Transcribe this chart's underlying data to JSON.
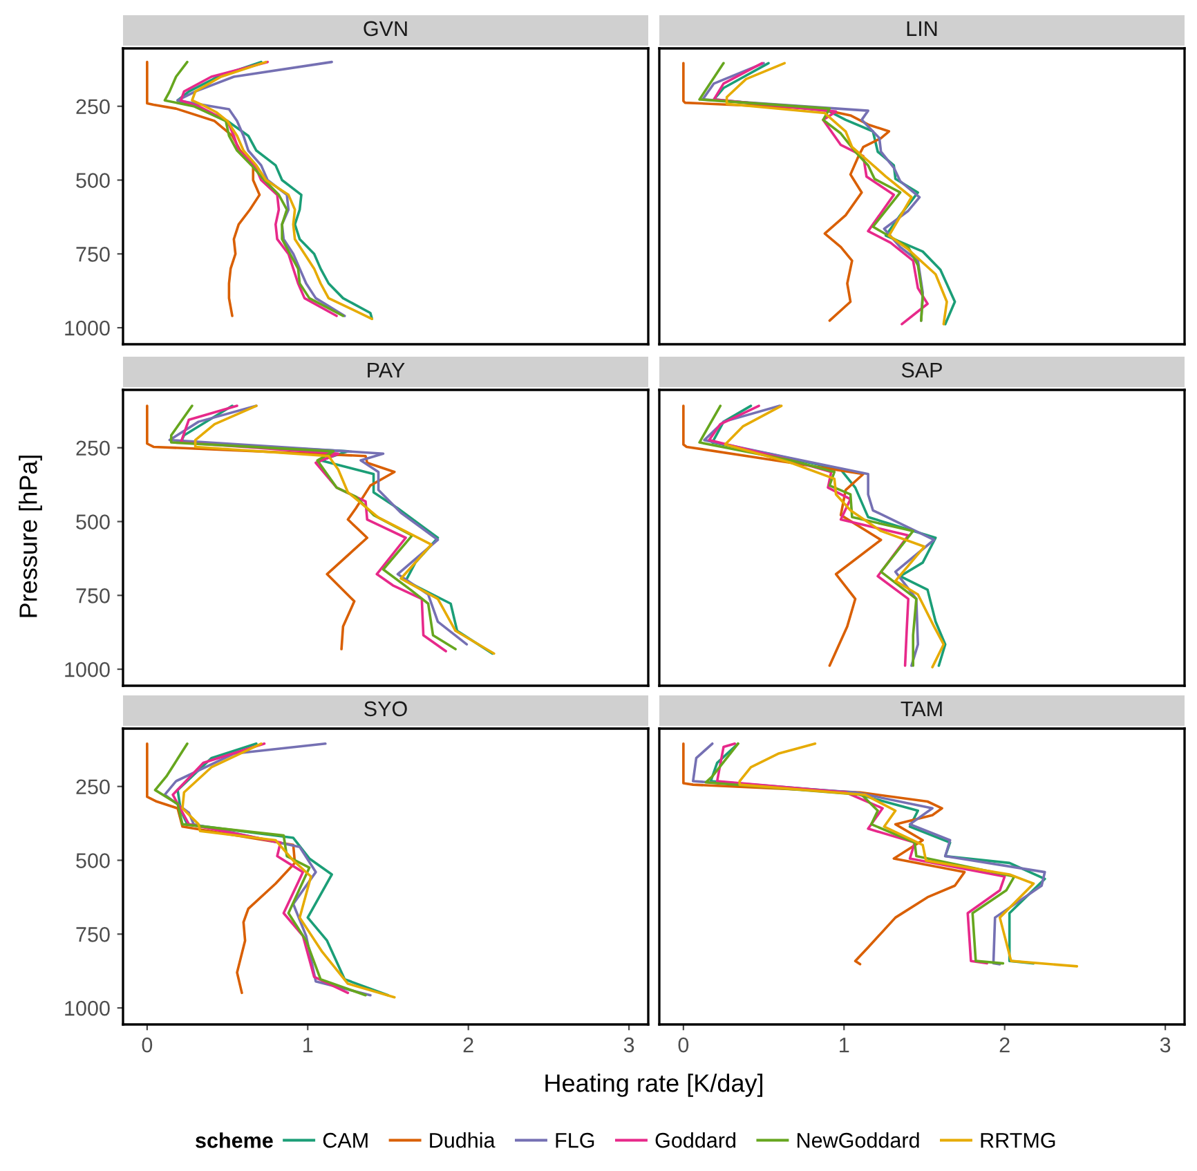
{
  "chart_data": [
    {
      "type": "line",
      "title": "GVN",
      "xlim": [
        -0.15,
        3.12
      ],
      "ylim": [
        1056,
        54
      ],
      "xticks": [
        0,
        1,
        2,
        3
      ],
      "yticks": [
        250,
        500,
        750,
        1000
      ],
      "tick_labels": "y",
      "grid": false,
      "legend": "bottom",
      "legend_title": "scheme",
      "line_style": "solid",
      "marker": "none",
      "series": [
        {
          "name": "CAM",
          "color": "#1b9e77",
          "x": [
            0.71,
            0.44,
            0.26,
            0.19,
            0.3,
            0.5,
            0.63,
            0.68,
            0.8,
            0.84,
            0.96,
            0.95,
            0.92,
            0.95,
            1.04,
            1.08,
            1.13,
            1.22,
            1.39,
            1.4
          ],
          "values": [
            100,
            150,
            200,
            230,
            250,
            300,
            350,
            400,
            450,
            500,
            550,
            600,
            650,
            700,
            750,
            800,
            850,
            900,
            950,
            970
          ]
        },
        {
          "name": "Dudhia",
          "color": "#d95f02",
          "x": [
            0,
            0,
            0,
            0.04,
            0.18,
            0.42,
            0.53,
            0.58,
            0.66,
            0.66,
            0.7,
            0.64,
            0.57,
            0.54,
            0.55,
            0.52,
            0.51,
            0.51,
            0.53
          ],
          "values": [
            100,
            200,
            240,
            245,
            258,
            300,
            350,
            400,
            450,
            500,
            550,
            600,
            650,
            700,
            750,
            800,
            850,
            900,
            960
          ]
        },
        {
          "name": "FLG",
          "color": "#7570b3",
          "x": [
            1.15,
            0.54,
            0.3,
            0.19,
            0.4,
            0.51,
            0.56,
            0.6,
            0.63,
            0.71,
            0.75,
            0.87,
            0.88,
            0.84,
            0.85,
            0.91,
            0.95,
            0.99,
            1.05,
            1.23
          ],
          "values": [
            100,
            150,
            200,
            230,
            250,
            260,
            300,
            350,
            400,
            450,
            500,
            550,
            600,
            650,
            700,
            750,
            800,
            850,
            900,
            960
          ]
        },
        {
          "name": "Goddard",
          "color": "#e7298a",
          "x": [
            0.75,
            0.4,
            0.23,
            0.21,
            0.32,
            0.5,
            0.54,
            0.57,
            0.67,
            0.71,
            0.81,
            0.82,
            0.8,
            0.81,
            0.88,
            0.91,
            0.94,
            0.98,
            1.18
          ],
          "values": [
            100,
            150,
            200,
            230,
            250,
            300,
            350,
            400,
            450,
            500,
            550,
            600,
            650,
            700,
            750,
            800,
            850,
            900,
            960
          ]
        },
        {
          "name": "NewGoddard",
          "color": "#66a61e",
          "x": [
            0.25,
            0.18,
            0.14,
            0.11,
            0.29,
            0.49,
            0.51,
            0.56,
            0.65,
            0.73,
            0.82,
            0.87,
            0.84,
            0.84,
            0.89,
            0.94,
            0.95,
            1.01,
            1.22
          ],
          "values": [
            100,
            150,
            200,
            230,
            250,
            300,
            350,
            400,
            450,
            500,
            550,
            600,
            650,
            700,
            750,
            800,
            850,
            900,
            960
          ]
        },
        {
          "name": "RRTMG",
          "color": "#e6ab02",
          "x": [
            0.74,
            0.46,
            0.3,
            0.28,
            0.36,
            0.43,
            0.5,
            0.56,
            0.6,
            0.68,
            0.74,
            0.88,
            0.92,
            0.91,
            0.92,
            0.98,
            1.04,
            1.08,
            1.13,
            1.4
          ],
          "values": [
            100,
            150,
            200,
            230,
            250,
            270,
            300,
            350,
            400,
            450,
            500,
            550,
            600,
            650,
            700,
            750,
            800,
            850,
            900,
            970
          ]
        }
      ]
    },
    {
      "type": "line",
      "title": "LIN",
      "xlim": [
        -0.15,
        3.12
      ],
      "ylim": [
        1056,
        54
      ],
      "xticks": [
        0,
        1,
        2,
        3
      ],
      "yticks": [
        250,
        500,
        750,
        1000
      ],
      "tick_labels": false,
      "grid": false,
      "line_style": "solid",
      "marker": "none",
      "series": [
        {
          "color": "#1b9e77",
          "x": [
            0.53,
            0.25,
            0.19,
            0.9,
            1.01,
            1.18,
            1.21,
            1.31,
            1.32,
            1.46,
            1.35,
            1.26,
            1.49,
            1.6,
            1.69,
            1.63
          ],
          "values": [
            104,
            188,
            227,
            265,
            296,
            335,
            404,
            450,
            496,
            542,
            619,
            688,
            742,
            804,
            912,
            988
          ]
        },
        {
          "color": "#d95f02",
          "x": [
            0,
            0,
            0.01,
            0.84,
            1.04,
            1.15,
            1.28,
            1.23,
            1.12,
            1.09,
            1.04,
            1.11,
            1.01,
            0.88,
            0.98,
            1.05,
            1.02,
            1.04,
            0.91
          ],
          "values": [
            104,
            232,
            238,
            258,
            281,
            312,
            335,
            358,
            388,
            419,
            481,
            542,
            619,
            681,
            727,
            773,
            850,
            912,
            976
          ]
        },
        {
          "color": "#7570b3",
          "x": [
            0.5,
            0.19,
            0.12,
            1.15,
            1.11,
            1.22,
            1.23,
            1.31,
            1.35,
            1.47,
            1.4,
            1.25,
            1.35,
            1.46,
            1.49,
            1.48
          ],
          "values": [
            104,
            173,
            227,
            265,
            296,
            358,
            404,
            458,
            504,
            558,
            604,
            665,
            727,
            773,
            881,
            976
          ]
        },
        {
          "color": "#e7298a",
          "x": [
            0.49,
            0.25,
            0.19,
            0.95,
            0.87,
            0.98,
            1.12,
            1.14,
            1.31,
            1.15,
            1.29,
            1.43,
            1.46,
            1.52,
            1.36
          ],
          "values": [
            104,
            173,
            227,
            268,
            296,
            381,
            419,
            488,
            550,
            673,
            712,
            773,
            866,
            919,
            988
          ]
        },
        {
          "color": "#66a61e",
          "x": [
            0.25,
            0.1,
            0.91,
            0.87,
            0.98,
            1.07,
            1.15,
            1.19,
            1.35,
            1.18,
            1.4,
            1.46,
            1.49,
            1.48
          ],
          "values": [
            104,
            227,
            258,
            296,
            342,
            404,
            450,
            496,
            542,
            658,
            727,
            789,
            896,
            976
          ]
        },
        {
          "color": "#e6ab02",
          "x": [
            0.63,
            0.39,
            0.27,
            0.27,
            0.88,
            1.01,
            1.05,
            1.15,
            1.26,
            1.42,
            1.28,
            1.4,
            1.57,
            1.64,
            1.62
          ],
          "values": [
            104,
            158,
            219,
            242,
            273,
            335,
            388,
            435,
            488,
            558,
            688,
            735,
            819,
            912,
            988
          ]
        }
      ]
    },
    {
      "type": "line",
      "title": "PAY",
      "ylabel": "Pressure [hPa]",
      "xlim": [
        -0.15,
        3.12
      ],
      "ylim": [
        1056,
        54
      ],
      "xticks": [
        0,
        1,
        2,
        3
      ],
      "yticks": [
        250,
        500,
        750,
        1000
      ],
      "tick_labels": "y",
      "grid": false,
      "line_style": "solid",
      "marker": "none",
      "series": [
        {
          "color": "#1b9e77",
          "x": [
            0.53,
            0.23,
            0.21,
            1.25,
            1.08,
            1.41,
            1.41,
            1.56,
            1.81,
            1.67,
            1.61,
            1.89,
            1.93,
            2.15
          ],
          "values": [
            108,
            208,
            232,
            262,
            293,
            339,
            401,
            455,
            555,
            639,
            701,
            778,
            870,
            947
          ]
        },
        {
          "color": "#d95f02",
          "x": [
            0,
            0,
            0.04,
            1.36,
            1.37,
            1.54,
            1.39,
            1.3,
            1.25,
            1.37,
            1.12,
            1.29,
            1.22,
            1.21
          ],
          "values": [
            108,
            236,
            247,
            278,
            301,
            332,
            378,
            455,
            493,
            555,
            678,
            770,
            855,
            932
          ]
        },
        {
          "color": "#7570b3",
          "x": [
            0.68,
            0.32,
            0.14,
            1.47,
            1.33,
            1.44,
            1.44,
            1.58,
            1.81,
            1.56,
            1.75,
            1.81,
            1.99
          ],
          "values": [
            108,
            162,
            224,
            270,
            293,
            332,
            393,
            470,
            562,
            678,
            747,
            839,
            916
          ]
        },
        {
          "color": "#e7298a",
          "x": [
            0.56,
            0.26,
            0.21,
            1.19,
            1.05,
            1.18,
            1.36,
            1.37,
            1.61,
            1.43,
            1.53,
            1.71,
            1.72,
            1.86
          ],
          "values": [
            108,
            155,
            232,
            270,
            301,
            385,
            432,
            493,
            555,
            678,
            716,
            762,
            885,
            939
          ]
        },
        {
          "color": "#66a61e",
          "x": [
            0.28,
            0.15,
            0.15,
            1.16,
            1.06,
            1.18,
            1.3,
            1.41,
            1.65,
            1.47,
            1.64,
            1.75,
            1.78,
            1.92
          ],
          "values": [
            108,
            208,
            232,
            262,
            293,
            385,
            416,
            478,
            547,
            662,
            731,
            778,
            885,
            932
          ]
        },
        {
          "color": "#e6ab02",
          "x": [
            0.68,
            0.42,
            0.3,
            0.3,
            1.13,
            1.19,
            1.25,
            1.44,
            1.77,
            1.58,
            1.81,
            1.92,
            2.16
          ],
          "values": [
            108,
            170,
            224,
            247,
            278,
            324,
            401,
            486,
            578,
            693,
            762,
            870,
            947
          ]
        }
      ]
    },
    {
      "type": "line",
      "title": "SAP",
      "xlim": [
        -0.15,
        3.12
      ],
      "ylim": [
        1056,
        54
      ],
      "xticks": [
        0,
        1,
        2,
        3
      ],
      "yticks": [
        250,
        500,
        750,
        1000
      ],
      "tick_labels": false,
      "grid": false,
      "line_style": "solid",
      "marker": "none",
      "series": [
        {
          "color": "#1b9e77",
          "x": [
            0.42,
            0.25,
            0.18,
            0.53,
            0.98,
            1.07,
            1.15,
            1.57,
            1.49,
            1.35,
            1.52,
            1.57,
            1.63,
            1.59
          ],
          "values": [
            108,
            162,
            232,
            270,
            324,
            385,
            485,
            555,
            639,
            685,
            731,
            839,
            916,
            988
          ]
        },
        {
          "color": "#d95f02",
          "x": [
            0,
            0,
            0.02,
            0.67,
            1.12,
            1.01,
            0.98,
            1.23,
            0.95,
            1.07,
            1.02,
            0.91
          ],
          "values": [
            108,
            239,
            247,
            301,
            339,
            393,
            478,
            562,
            678,
            762,
            855,
            988
          ]
        },
        {
          "color": "#7570b3",
          "x": [
            0.6,
            0.25,
            0.13,
            0.67,
            1.15,
            1.15,
            1.18,
            1.56,
            1.32,
            1.45,
            1.46,
            1.42
          ],
          "values": [
            108,
            162,
            224,
            285,
            339,
            408,
            462,
            562,
            670,
            762,
            916,
            988
          ]
        },
        {
          "color": "#e7298a",
          "x": [
            0.47,
            0.23,
            0.16,
            0.67,
            0.92,
            0.9,
            1.04,
            0.98,
            1.4,
            1.21,
            1.4,
            1.39,
            1.38
          ],
          "values": [
            108,
            170,
            224,
            293,
            332,
            385,
            424,
            493,
            547,
            685,
            762,
            870,
            988
          ]
        },
        {
          "color": "#66a61e",
          "x": [
            0.23,
            0.1,
            0.67,
            0.94,
            0.91,
            1.04,
            1.05,
            1.43,
            1.23,
            1.45,
            1.43,
            1.43
          ],
          "values": [
            108,
            232,
            293,
            332,
            378,
            408,
            485,
            532,
            670,
            762,
            885,
            988
          ]
        },
        {
          "color": "#e6ab02",
          "x": [
            0.61,
            0.37,
            0.26,
            0.67,
            0.94,
            0.95,
            1.04,
            1.23,
            1.5,
            1.32,
            1.46,
            1.56,
            1.62,
            1.55
          ],
          "values": [
            108,
            178,
            239,
            301,
            355,
            408,
            462,
            532,
            585,
            701,
            747,
            855,
            916,
            993
          ]
        }
      ]
    },
    {
      "type": "line",
      "title": "SYO",
      "xlabel": "Heating rate [K/day]",
      "xlim": [
        -0.15,
        3.12
      ],
      "ylim": [
        1056,
        54
      ],
      "xticks": [
        0,
        1,
        2,
        3
      ],
      "yticks": [
        250,
        500,
        750,
        1000
      ],
      "grid": false,
      "line_style": "solid",
      "marker": "none",
      "series": [
        {
          "color": "#1b9e77",
          "x": [
            0.68,
            0.4,
            0.19,
            0.21,
            0.25,
            0.91,
            1.01,
            1.15,
            1.0,
            1.12,
            1.23,
            1.5
          ],
          "values": [
            105,
            154,
            262,
            332,
            378,
            424,
            494,
            548,
            694,
            772,
            903,
            957
          ]
        },
        {
          "color": "#d95f02",
          "x": [
            0,
            0,
            0.06,
            0.19,
            0.22,
            0.91,
            0.92,
            0.8,
            0.63,
            0.6,
            0.61,
            0.56,
            0.59
          ],
          "values": [
            105,
            285,
            301,
            324,
            386,
            448,
            509,
            579,
            664,
            710,
            772,
            880,
            949
          ]
        },
        {
          "color": "#7570b3",
          "x": [
            1.11,
            0.54,
            0.18,
            0.11,
            0.26,
            0.29,
            0.95,
            1.05,
            0.91,
            0.99,
            1.05,
            1.39
          ],
          "values": [
            105,
            139,
            232,
            278,
            339,
            378,
            455,
            540,
            648,
            756,
            910,
            957
          ]
        },
        {
          "color": "#e7298a",
          "x": [
            0.73,
            0.35,
            0.16,
            0.26,
            0.83,
            0.81,
            0.97,
            0.85,
            0.97,
            1.04,
            1.25
          ],
          "values": [
            105,
            170,
            278,
            378,
            440,
            486,
            540,
            679,
            756,
            895,
            949
          ]
        },
        {
          "color": "#66a61e",
          "x": [
            0.25,
            0.12,
            0.05,
            0.19,
            0.22,
            0.85,
            0.87,
            1.01,
            0.88,
            0.99,
            1.08,
            1.36
          ],
          "values": [
            105,
            216,
            262,
            309,
            378,
            416,
            486,
            525,
            679,
            772,
            903,
            957
          ]
        },
        {
          "color": "#e6ab02",
          "x": [
            0.71,
            0.4,
            0.23,
            0.22,
            0.32,
            0.33,
            0.8,
            0.91,
            1.02,
            0.95,
            1.09,
            1.25,
            1.54
          ],
          "values": [
            105,
            185,
            270,
            324,
            378,
            401,
            432,
            501,
            555,
            694,
            810,
            918,
            964
          ]
        }
      ]
    },
    {
      "type": "line",
      "title": "TAM",
      "xlim": [
        -0.15,
        3.12
      ],
      "ylim": [
        1056,
        54
      ],
      "xticks": [
        0,
        1,
        2,
        3
      ],
      "yticks": [
        250,
        500,
        750,
        1000
      ],
      "tick_labels": "x",
      "grid": false,
      "line_style": "solid",
      "marker": "none",
      "series": [
        {
          "color": "#1b9e77",
          "x": [
            0.34,
            0.21,
            0.17,
            1.04,
            1.46,
            1.41,
            1.66,
            1.63,
            2.03,
            2.25,
            2.03,
            2.03,
            2.18
          ],
          "values": [
            105,
            170,
            232,
            270,
            332,
            386,
            440,
            486,
            509,
            563,
            679,
            841,
            849
          ]
        },
        {
          "color": "#d95f02",
          "x": [
            0,
            0,
            0.06,
            1.1,
            1.52,
            1.61,
            1.55,
            1.32,
            1.49,
            1.31,
            1.75,
            1.69,
            1.52,
            1.32,
            1.15,
            1.07,
            1.1
          ],
          "values": [
            105,
            239,
            244,
            270,
            301,
            324,
            347,
            378,
            432,
            494,
            540,
            586,
            625,
            694,
            795,
            841,
            852
          ]
        },
        {
          "color": "#7570b3",
          "x": [
            0.18,
            0.08,
            0.06,
            1.07,
            1.55,
            1.41,
            1.66,
            1.63,
            2.25,
            2.23,
            1.94,
            1.93,
            1.97
          ],
          "values": [
            105,
            154,
            232,
            270,
            324,
            378,
            432,
            486,
            540,
            586,
            694,
            849,
            852
          ]
        },
        {
          "color": "#e7298a",
          "x": [
            0.32,
            0.25,
            0.21,
            1.01,
            1.24,
            1.15,
            1.44,
            1.41,
            2.0,
            1.97,
            1.77,
            1.79,
            1.89
          ],
          "values": [
            105,
            116,
            232,
            270,
            324,
            393,
            440,
            494,
            555,
            602,
            679,
            841,
            849
          ]
        },
        {
          "color": "#66a61e",
          "x": [
            0.34,
            0.18,
            0.14,
            1.11,
            1.21,
            1.17,
            1.44,
            1.45,
            2.06,
            2.01,
            1.8,
            1.82,
            1.99
          ],
          "values": [
            105,
            216,
            236,
            278,
            332,
            378,
            440,
            486,
            555,
            602,
            679,
            841,
            849
          ]
        },
        {
          "color": "#e6ab02",
          "x": [
            0.82,
            0.59,
            0.42,
            0.35,
            0.35,
            1.13,
            1.32,
            1.25,
            1.49,
            1.51,
            2.03,
            2.18,
            1.97,
            2.04,
            2.45
          ],
          "values": [
            105,
            139,
            185,
            232,
            244,
            278,
            332,
            386,
            448,
            501,
            548,
            579,
            694,
            841,
            859
          ]
        }
      ]
    }
  ]
}
